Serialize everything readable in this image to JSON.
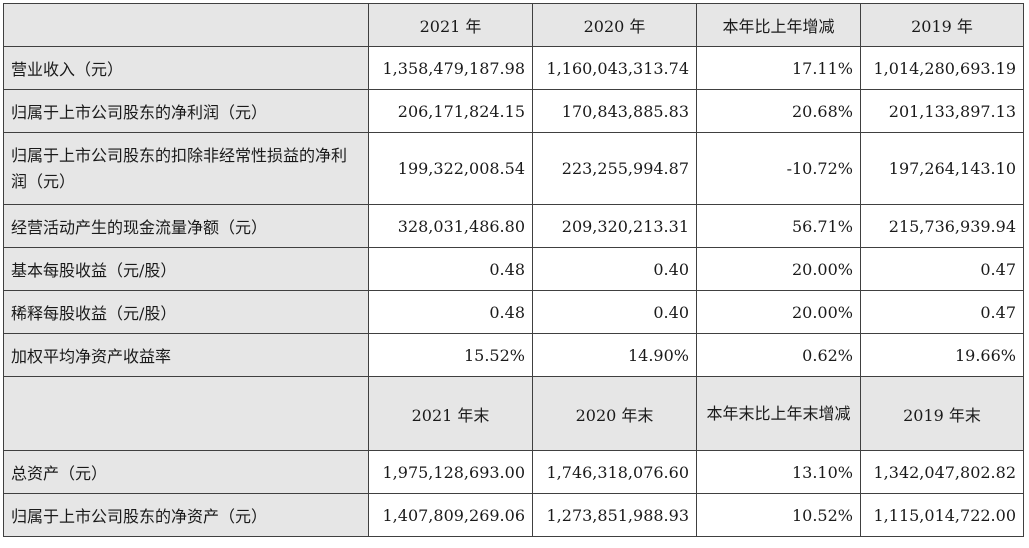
{
  "table": {
    "header1": [
      "",
      "2021 年",
      "2020 年",
      "本年比上年增减",
      "2019 年"
    ],
    "rows1": [
      {
        "label": "营业收入（元）",
        "cells": [
          "1,358,479,187.98",
          "1,160,043,313.74",
          "17.11%",
          "1,014,280,693.19"
        ]
      },
      {
        "label": "归属于上市公司股东的净利润（元）",
        "cells": [
          "206,171,824.15",
          "170,843,885.83",
          "20.68%",
          "201,133,897.13"
        ]
      },
      {
        "label": "归属于上市公司股东的扣除非经常性损益的净利润（元）",
        "cells": [
          "199,322,008.54",
          "223,255,994.87",
          "-10.72%",
          "197,264,143.10"
        ]
      },
      {
        "label": "经营活动产生的现金流量净额（元）",
        "cells": [
          "328,031,486.80",
          "209,320,213.31",
          "56.71%",
          "215,736,939.94"
        ]
      },
      {
        "label": "基本每股收益（元/股）",
        "cells": [
          "0.48",
          "0.40",
          "20.00%",
          "0.47"
        ]
      },
      {
        "label": "稀释每股收益（元/股）",
        "cells": [
          "0.48",
          "0.40",
          "20.00%",
          "0.47"
        ]
      },
      {
        "label": "加权平均净资产收益率",
        "cells": [
          "15.52%",
          "14.90%",
          "0.62%",
          "19.66%"
        ]
      }
    ],
    "header2": [
      "",
      "2021 年末",
      "2020 年末",
      "本年末比上年末增减",
      "2019 年末"
    ],
    "rows2": [
      {
        "label": "总资产（元）",
        "cells": [
          "1,975,128,693.00",
          "1,746,318,076.60",
          "13.10%",
          "1,342,047,802.82"
        ]
      },
      {
        "label": "归属于上市公司股东的净资产（元）",
        "cells": [
          "1,407,809,269.06",
          "1,273,851,988.93",
          "10.52%",
          "1,115,014,722.00"
        ]
      }
    ]
  }
}
